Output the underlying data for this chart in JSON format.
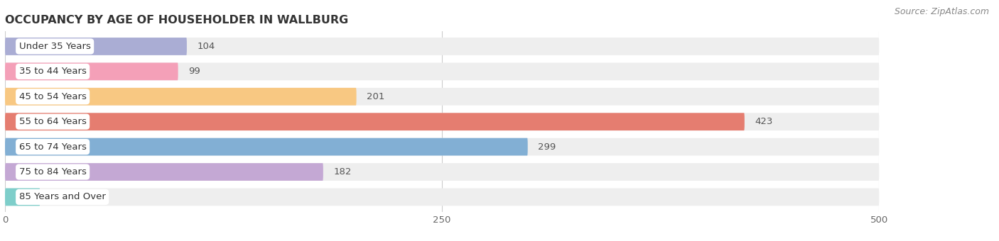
{
  "title": "OCCUPANCY BY AGE OF HOUSEHOLDER IN WALLBURG",
  "source": "Source: ZipAtlas.com",
  "categories": [
    "Under 35 Years",
    "35 to 44 Years",
    "45 to 54 Years",
    "55 to 64 Years",
    "65 to 74 Years",
    "75 to 84 Years",
    "85 Years and Over"
  ],
  "values": [
    104,
    99,
    201,
    423,
    299,
    182,
    20
  ],
  "bar_colors": [
    "#aaadd4",
    "#f4a0b8",
    "#f8c882",
    "#e57d70",
    "#82afd4",
    "#c4a8d4",
    "#7ececa"
  ],
  "bar_bg_color": "#eeeeee",
  "xlim": [
    0,
    500
  ],
  "xticks": [
    0,
    250,
    500
  ],
  "title_fontsize": 11.5,
  "label_fontsize": 9.5,
  "value_fontsize": 9.5,
  "source_fontsize": 9,
  "background_color": "#ffffff",
  "bar_height": 0.7,
  "figure_width": 14.06,
  "figure_height": 3.4
}
